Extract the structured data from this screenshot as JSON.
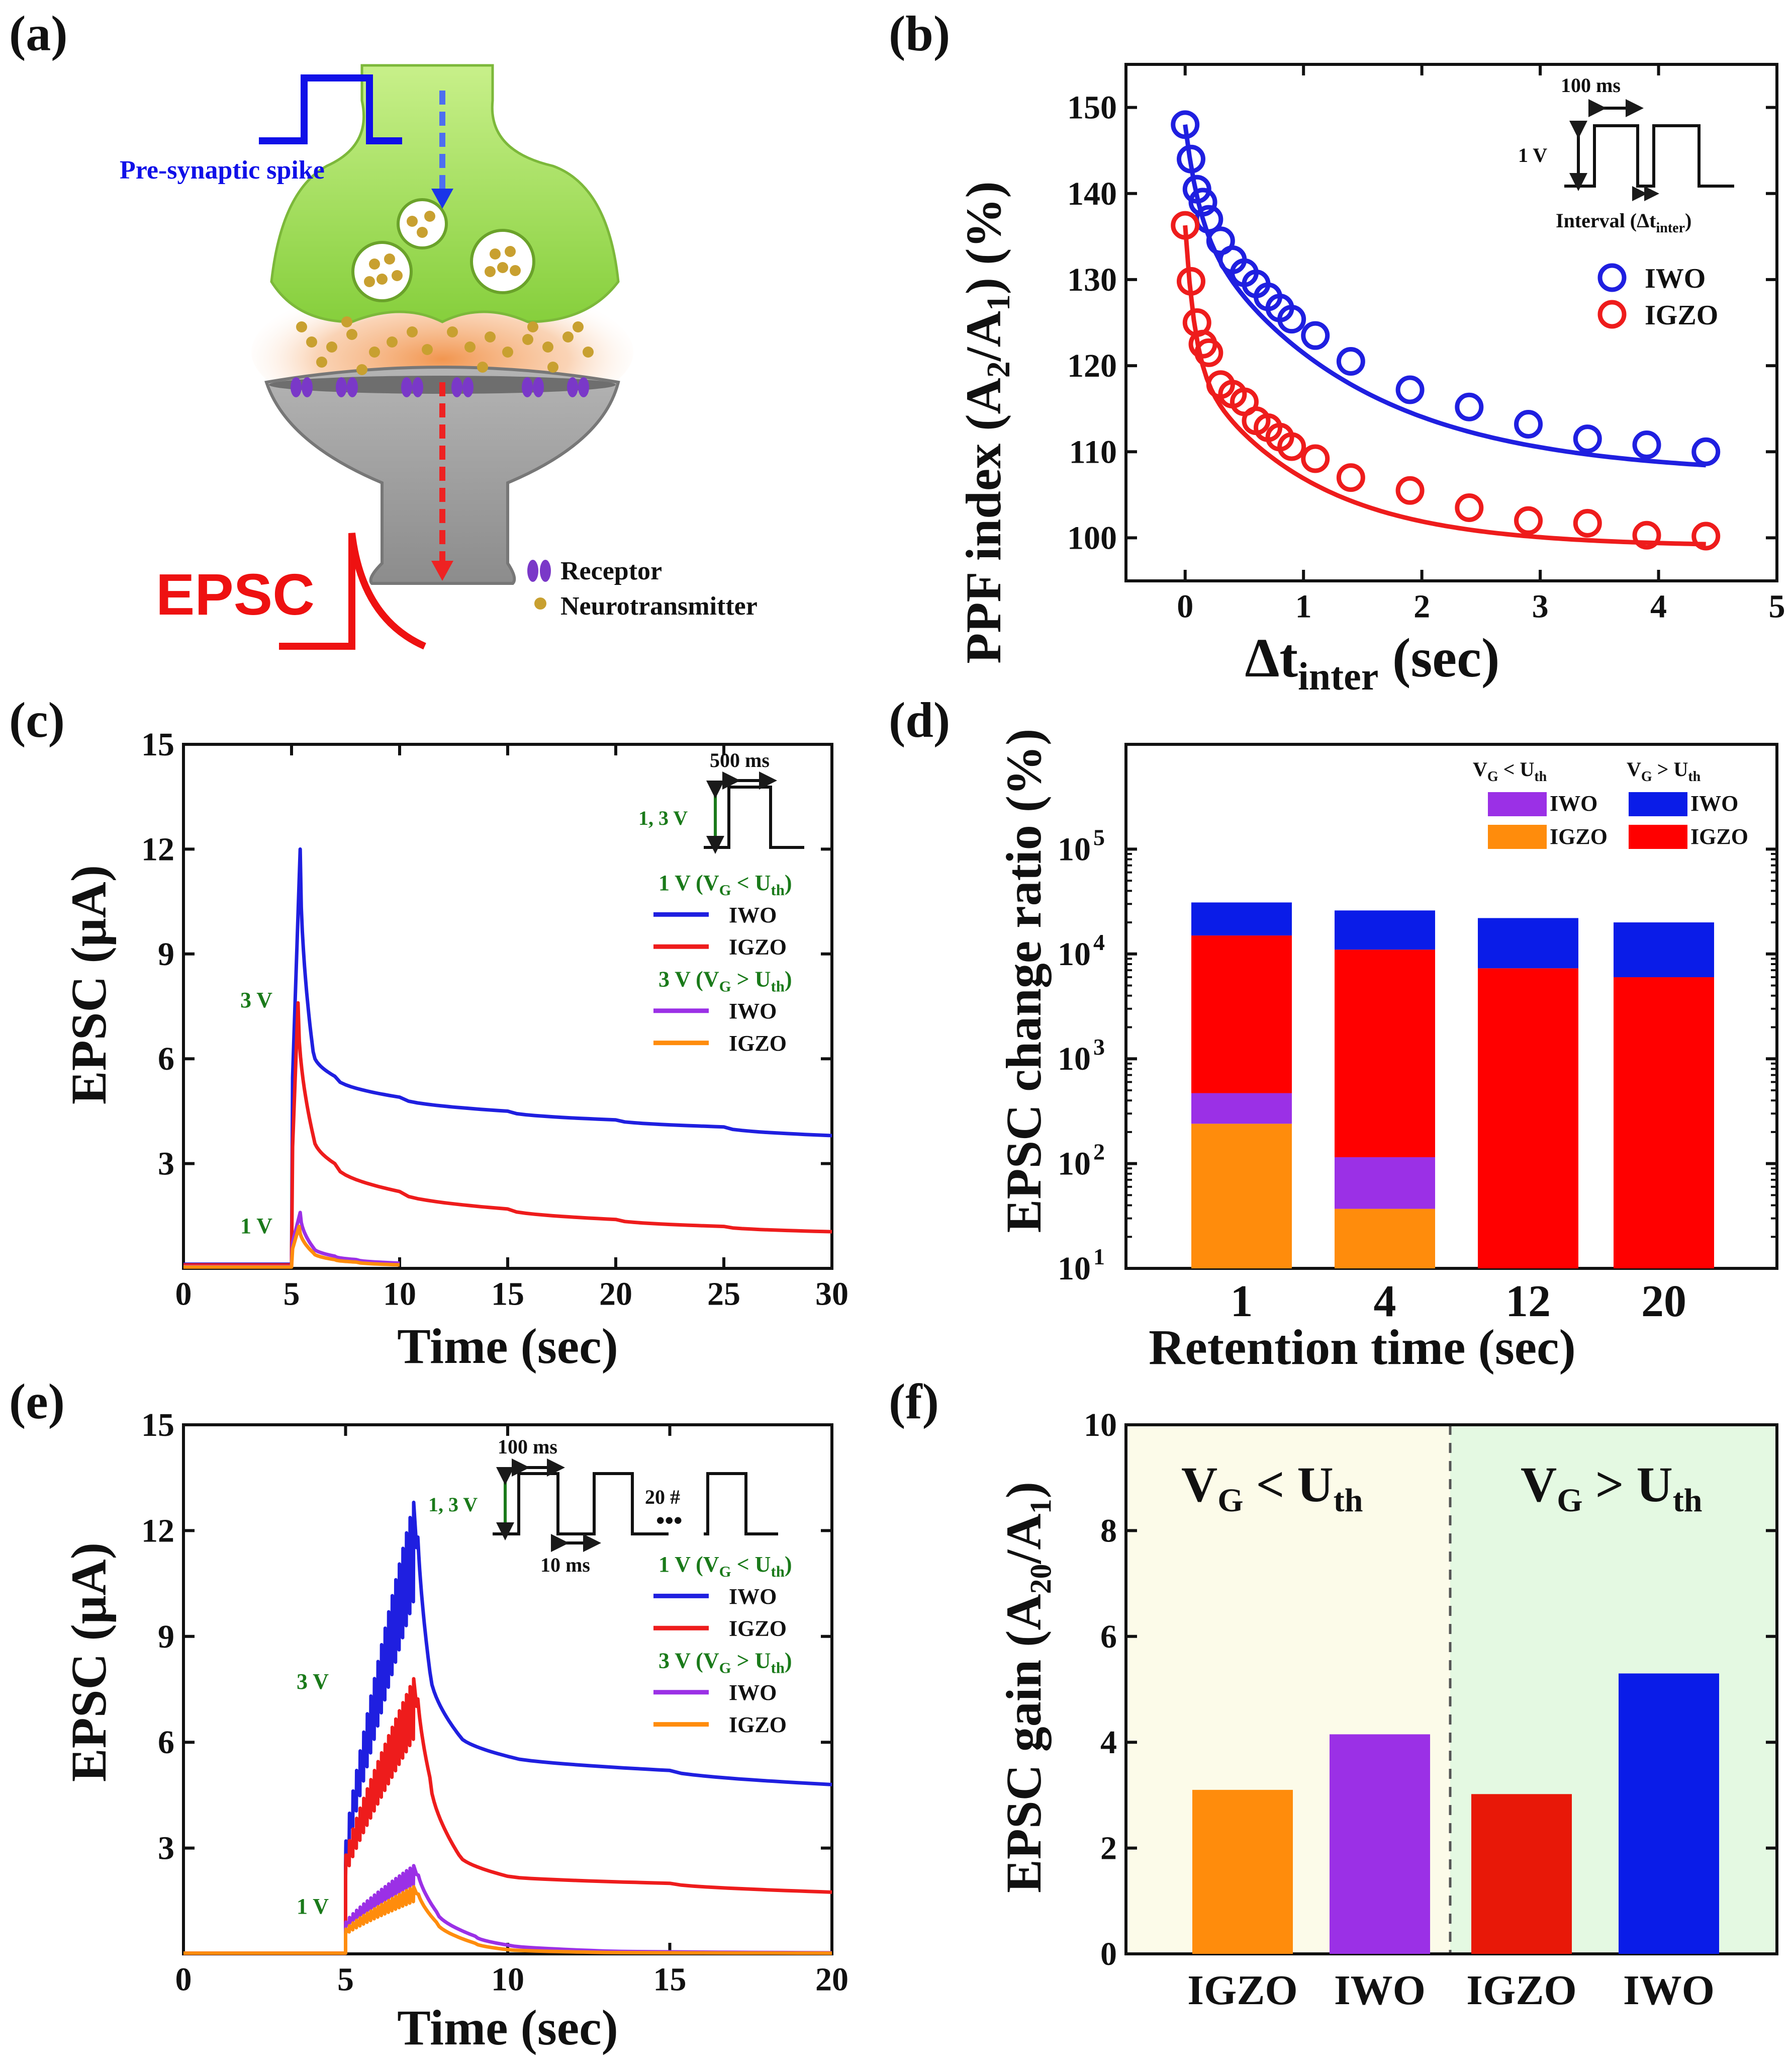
{
  "panels": {
    "a": {
      "label": "(a)",
      "spike_label": "Pre-synaptic spike",
      "epsc_label": "EPSC",
      "legend": [
        "Receptor",
        "Neurotransmitter"
      ]
    }
  },
  "colors": {
    "IWO": "#1f1fe0",
    "IGZO": "#ee1c1c",
    "IWO_low": "#9b30e6",
    "IGZO_low": "#ff8c0c",
    "green_text": "#1a7a1a",
    "spike_blue": "#1010e8",
    "epsc_red": "#ee1111"
  },
  "chart_data": [
    {
      "id": "b",
      "label": "(b)",
      "type": "scatter",
      "title": "",
      "xlabel": "Δt",
      "xlabel_sub": "inter",
      "xlabel_unit": " (sec)",
      "ylabel": "PPF index (A₂/A₁) (%)",
      "xlim": [
        -0.5,
        5
      ],
      "ylim": [
        95,
        155
      ],
      "xticks": [
        0,
        1,
        2,
        3,
        4,
        5
      ],
      "yticks": [
        100,
        110,
        120,
        130,
        140,
        150
      ],
      "legend": [
        "IWO",
        "IGZO"
      ],
      "inset": {
        "width_label": "100 ms",
        "amp_label": "1 V",
        "interval_label": "Interval (Δt",
        "interval_sub": "inter",
        "interval_end": ")"
      },
      "series": [
        {
          "name": "IWO",
          "x": [
            0,
            0.05,
            0.1,
            0.15,
            0.2,
            0.3,
            0.4,
            0.5,
            0.6,
            0.7,
            0.8,
            0.9,
            1.1,
            1.4,
            1.9,
            2.4,
            2.9,
            3.4,
            3.9,
            4.4
          ],
          "y": [
            148,
            144,
            140.5,
            139,
            137,
            134.5,
            132.3,
            130.8,
            129.5,
            128,
            126.7,
            125.4,
            123.5,
            120.5,
            117.2,
            115.2,
            113.2,
            111.5,
            110.8,
            110
          ],
          "fit": {
            "a": 107.3,
            "b1": 11.0,
            "t1": 0.12,
            "b2": 29.7,
            "t2": 1.35
          }
        },
        {
          "name": "IGZO",
          "x": [
            0,
            0.05,
            0.1,
            0.15,
            0.2,
            0.3,
            0.4,
            0.5,
            0.6,
            0.7,
            0.8,
            0.9,
            1.1,
            1.4,
            1.9,
            2.4,
            2.9,
            3.4,
            3.9,
            4.4
          ],
          "y": [
            136.3,
            129.8,
            125,
            122.5,
            121.5,
            117.8,
            116.7,
            115.8,
            113.6,
            112.8,
            111.7,
            110.6,
            109.2,
            107,
            105.5,
            103.5,
            102,
            101.7,
            100.3,
            100.2
          ],
          "fit": {
            "a": 99.0,
            "b1": 15.8,
            "t1": 0.08,
            "b2": 21.5,
            "t2": 1.0
          }
        }
      ]
    },
    {
      "id": "c",
      "label": "(c)",
      "type": "line",
      "xlabel": "Time (sec)",
      "ylabel": "EPSC (μA)",
      "xlim": [
        0,
        30
      ],
      "ylim": [
        0,
        15
      ],
      "xticks": [
        0,
        5,
        10,
        15,
        20,
        25,
        30
      ],
      "yticks": [
        3,
        6,
        9,
        12,
        15
      ],
      "pulse_width": "500 ms",
      "pulse_amp": "1, 3 V",
      "annotations": [
        "3 V",
        "1 V"
      ],
      "legend_groups": [
        {
          "header": "1 V (V",
          "header_sub": "G",
          "header_mid": " < U",
          "header_sub2": "th",
          "header_end": ")",
          "items": [
            "IWO",
            "IGZO"
          ]
        },
        {
          "header": "3 V (V",
          "header_sub": "G",
          "header_mid": " > U",
          "header_sub2": "th",
          "header_end": ")",
          "items": [
            "IWO",
            "IGZO"
          ]
        }
      ],
      "series": [
        {
          "name": "IWO (3 V)",
          "baseline": 0.12,
          "peak_t": 5.4,
          "peak": 12.0,
          "tail": [
            [
              6,
              6.2
            ],
            [
              7,
              5.5
            ],
            [
              10,
              4.9
            ],
            [
              15,
              4.5
            ],
            [
              20,
              4.25
            ],
            [
              25,
              4.05
            ],
            [
              30,
              3.8
            ]
          ]
        },
        {
          "name": "IGZO (3 V)",
          "baseline": 0.1,
          "peak_t": 5.3,
          "peak": 7.6,
          "tail": [
            [
              6,
              3.8
            ],
            [
              7,
              3.0
            ],
            [
              10,
              2.2
            ],
            [
              15,
              1.7
            ],
            [
              20,
              1.4
            ],
            [
              25,
              1.2
            ],
            [
              30,
              1.05
            ]
          ]
        },
        {
          "name": "IWO (1 V)",
          "baseline": 0.05,
          "peak_t": 5.4,
          "peak": 1.6,
          "tail": [
            [
              6,
              0.6
            ],
            [
              7,
              0.35
            ],
            [
              8,
              0.25
            ],
            [
              10,
              0.15
            ]
          ]
        },
        {
          "name": "IGZO (1 V)",
          "baseline": 0.04,
          "peak_t": 5.35,
          "peak": 1.2,
          "tail": [
            [
              6,
              0.45
            ],
            [
              7,
              0.25
            ],
            [
              8,
              0.18
            ],
            [
              10,
              0.1
            ]
          ]
        }
      ]
    },
    {
      "id": "d",
      "label": "(d)",
      "type": "bar",
      "xlabel": "Retention time (sec)",
      "ylabel": "EPSC change ratio (%)",
      "yscale": "log",
      "ylim": [
        10,
        1000000
      ],
      "categories": [
        "1",
        "4",
        "12",
        "20"
      ],
      "legend_headers": [
        "V",
        "V"
      ],
      "series": [
        {
          "name": "IGZO (V_G < U_th)",
          "values": [
            240,
            37,
            0,
            0
          ]
        },
        {
          "name": "IWO (V_G < U_th)",
          "values": [
            470,
            115,
            0,
            0
          ]
        },
        {
          "name": "IGZO (V_G > U_th)",
          "values": [
            15000,
            11000,
            7300,
            6000
          ]
        },
        {
          "name": "IWO (V_G > U_th)",
          "values": [
            31000,
            26000,
            22000,
            20000
          ]
        }
      ]
    },
    {
      "id": "e",
      "label": "(e)",
      "type": "line",
      "xlabel": "Time (sec)",
      "ylabel": "EPSC (μA)",
      "xlim": [
        0,
        20
      ],
      "ylim": [
        0,
        15
      ],
      "xticks": [
        0,
        5,
        10,
        15,
        20
      ],
      "yticks": [
        3,
        6,
        9,
        12,
        15
      ],
      "pulse_width": "100 ms",
      "pulse_gap": "10 ms",
      "pulse_amp": "1, 3 V",
      "pulse_count": "20 #",
      "annotations": [
        "3 V",
        "1 V"
      ],
      "legend_groups": [
        {
          "header": "1 V (V",
          "header_sub": "G",
          "header_mid": " < U",
          "header_sub2": "th",
          "header_end": ")",
          "items": [
            "IWO",
            "IGZO"
          ]
        },
        {
          "header": "3 V (V",
          "header_sub": "G",
          "header_mid": " > U",
          "header_sub2": "th",
          "header_end": ")",
          "items": [
            "IWO",
            "IGZO"
          ]
        }
      ],
      "series": [
        {
          "name": "IWO (3 V)",
          "t0": 5.0,
          "t1": 7.2,
          "start": 3.2,
          "end": 12.8,
          "tail": [
            [
              7.6,
              8.0
            ],
            [
              8.5,
              6.2
            ],
            [
              10,
              5.6
            ],
            [
              15,
              5.2
            ],
            [
              20,
              4.8
            ]
          ]
        },
        {
          "name": "IGZO (3 V)",
          "t0": 5.0,
          "t1": 7.2,
          "start": 2.8,
          "end": 7.8,
          "tail": [
            [
              7.6,
              5.0
            ],
            [
              8.5,
              2.8
            ],
            [
              10,
              2.2
            ],
            [
              15,
              2.0
            ],
            [
              20,
              1.75
            ]
          ]
        },
        {
          "name": "IWO (1 V)",
          "t0": 5.0,
          "t1": 7.2,
          "start": 0.9,
          "end": 2.5,
          "tail": [
            [
              7.8,
              1.2
            ],
            [
              9,
              0.5
            ],
            [
              10,
              0.25
            ],
            [
              13,
              0.08
            ],
            [
              20,
              0.03
            ]
          ]
        },
        {
          "name": "IGZO (1 V)",
          "t0": 5.0,
          "t1": 7.2,
          "start": 0.7,
          "end": 1.9,
          "tail": [
            [
              7.8,
              0.9
            ],
            [
              9,
              0.3
            ],
            [
              10,
              0.12
            ],
            [
              13,
              0.04
            ],
            [
              20,
              0.02
            ]
          ]
        }
      ]
    },
    {
      "id": "f",
      "label": "(f)",
      "type": "bar",
      "xlabel": "",
      "ylabel": "EPSC gain (A₂₀/A₁)",
      "ylim": [
        0,
        10
      ],
      "yticks": [
        0,
        2,
        4,
        6,
        8,
        10
      ],
      "categories": [
        "IGZO",
        "IWO",
        "IGZO",
        "IWO"
      ],
      "values": [
        3.1,
        4.15,
        3.02,
        5.3
      ],
      "region_labels": [
        "V",
        "V"
      ]
    }
  ]
}
